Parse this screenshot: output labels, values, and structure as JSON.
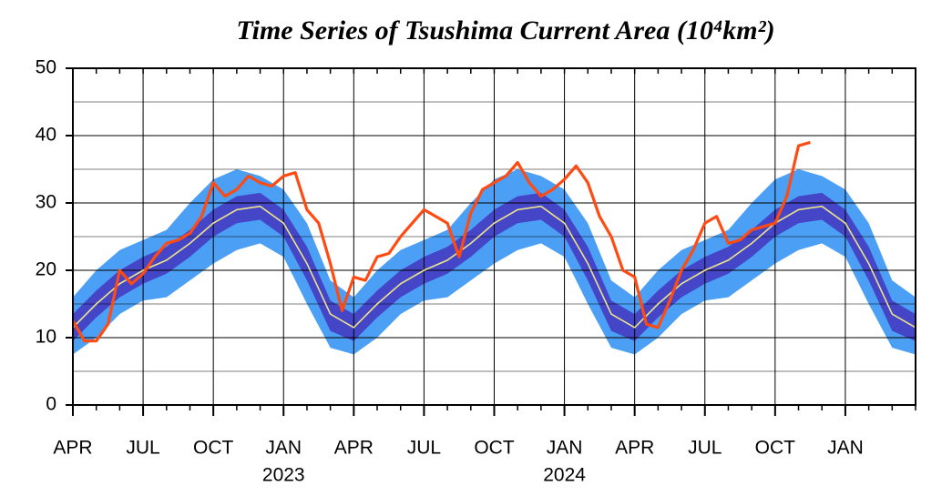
{
  "chart_data": {
    "type": "line",
    "title": "Time Series of Tsushima Current Area (10⁴km²)",
    "xlim": [
      0,
      36
    ],
    "xticks": [
      {
        "value": 0,
        "label": "APR"
      },
      {
        "value": 3,
        "label": "JUL"
      },
      {
        "value": 6,
        "label": "OCT"
      },
      {
        "value": 9,
        "label": "JAN"
      },
      {
        "value": 12,
        "label": "APR"
      },
      {
        "value": 15,
        "label": "JUL"
      },
      {
        "value": 18,
        "label": "OCT"
      },
      {
        "value": 21,
        "label": "JAN"
      },
      {
        "value": 24,
        "label": "APR"
      },
      {
        "value": 27,
        "label": "JUL"
      },
      {
        "value": 30,
        "label": "OCT"
      },
      {
        "value": 33,
        "label": "JAN"
      }
    ],
    "year_labels": [
      {
        "value": 9,
        "label": "2023"
      },
      {
        "value": 21,
        "label": "2024"
      }
    ],
    "ylim": [
      0,
      50
    ],
    "yticks": [
      0,
      10,
      20,
      30,
      40,
      50
    ],
    "yminor": [
      5,
      15,
      25,
      35,
      45
    ],
    "grid": true,
    "x": [
      0,
      1,
      2,
      3,
      4,
      5,
      6,
      7,
      8,
      9,
      10,
      11,
      12,
      13,
      14,
      15,
      16,
      17,
      18,
      19,
      20,
      21,
      22,
      23,
      24,
      25,
      26,
      27,
      28,
      29,
      30,
      31,
      32,
      33,
      34,
      35,
      36
    ],
    "bands": [
      {
        "color": "#4b9ff5",
        "lower": [
          7.5,
          10,
          13.5,
          15.5,
          16,
          18.5,
          21,
          23,
          24,
          22,
          15,
          8.5,
          7.5,
          10,
          13.5,
          15.5,
          16,
          18.5,
          21,
          23,
          24,
          22,
          15,
          8.5,
          7.5,
          10,
          13.5,
          15.5,
          16,
          18.5,
          21,
          23,
          24,
          22,
          15,
          8.5,
          7.5
        ],
        "upper": [
          16,
          20,
          23,
          24.5,
          26,
          30,
          33.5,
          35,
          34,
          32,
          27,
          18.5,
          16,
          20,
          23,
          24.5,
          26,
          30,
          33.5,
          35,
          34,
          32,
          27,
          18.5,
          16,
          20,
          23,
          24.5,
          26,
          30,
          33.5,
          35,
          34,
          32,
          27,
          18.5,
          16
        ]
      },
      {
        "color": "#4545c8",
        "lower": [
          9.5,
          13,
          16,
          18,
          19.5,
          22,
          25,
          27,
          27.5,
          25,
          18.5,
          11,
          9.5,
          13,
          16,
          18,
          19.5,
          22,
          25,
          27,
          27.5,
          25,
          18.5,
          11,
          9.5,
          13,
          16,
          18,
          19.5,
          22,
          25,
          27,
          27.5,
          25,
          18.5,
          11,
          9.5
        ],
        "upper": [
          13.5,
          17,
          20,
          22,
          23.5,
          26,
          29,
          31,
          31.5,
          29,
          23.5,
          15.5,
          13.5,
          17,
          20,
          22,
          23.5,
          26,
          29,
          31,
          31.5,
          29,
          23.5,
          15.5,
          13.5,
          17,
          20,
          22,
          23.5,
          26,
          29,
          31,
          31.5,
          29,
          23.5,
          15.5,
          13.5
        ]
      }
    ],
    "mean": {
      "color": "#ece48a",
      "values": [
        11.5,
        15,
        18,
        20,
        21.5,
        24,
        27,
        29,
        29.5,
        27,
        21,
        13.5,
        11.5,
        15,
        18,
        20,
        21.5,
        24,
        27,
        29,
        29.5,
        27,
        21,
        13.5,
        11.5,
        15,
        18,
        20,
        21.5,
        24,
        27,
        29,
        29.5,
        27,
        21,
        13.5,
        11.5
      ]
    },
    "observed": {
      "color": "#ff4a12",
      "x": [
        0,
        0.5,
        1,
        1.5,
        2,
        2.5,
        3,
        3.5,
        4,
        4.5,
        5,
        5.5,
        6,
        6.5,
        7,
        7.5,
        8,
        8.5,
        9,
        9.5,
        10,
        10.5,
        11,
        11.5,
        12,
        12.5,
        13,
        13.5,
        14,
        14.5,
        15,
        15.5,
        16,
        16.5,
        17,
        17.5,
        18,
        18.5,
        19,
        19.5,
        20,
        20.5,
        21,
        21.5,
        22,
        22.5,
        23,
        23.5,
        24,
        24.5,
        25,
        25.5,
        26,
        26.5,
        27,
        27.5,
        28,
        28.5,
        29,
        29.5,
        30,
        30.5,
        31,
        31.5
      ],
      "values": [
        12.5,
        9.5,
        9.5,
        12,
        20,
        18,
        19.5,
        22,
        24,
        24.5,
        25.5,
        28,
        33,
        31,
        32,
        34,
        33,
        32.5,
        34,
        34.5,
        29,
        27,
        21,
        14,
        19,
        18.5,
        22,
        22.5,
        25,
        27,
        29,
        28,
        27,
        22,
        28.5,
        32,
        33,
        34,
        36,
        33,
        31,
        32,
        33.5,
        35.5,
        33,
        28,
        25,
        20,
        19,
        12,
        11.5,
        15.5,
        20,
        23,
        27,
        28,
        24,
        24.5,
        26,
        26.5,
        27,
        31,
        38.5,
        39
      ]
    }
  }
}
